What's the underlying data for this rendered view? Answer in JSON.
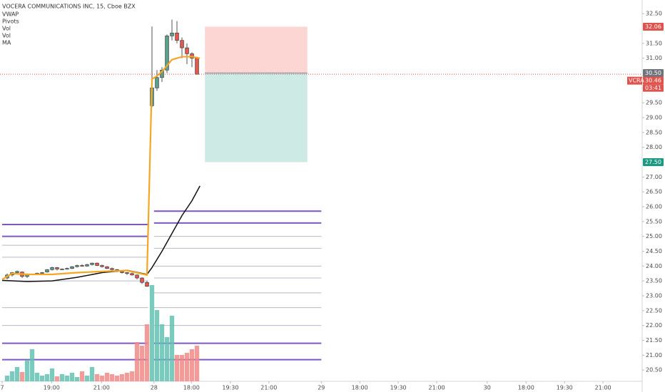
{
  "chart_data": {
    "type": "candlestick",
    "title": "VOCERA COMMUNICATIONS INC, 15, Cboe BZX",
    "indicators": [
      "VWAP",
      "Pivots",
      "Vol",
      "Vol",
      "MA"
    ],
    "x": [
      1,
      2,
      3,
      4,
      5,
      6,
      7,
      8,
      9,
      10,
      11,
      12,
      13,
      14,
      15,
      16,
      17,
      18,
      19,
      20,
      21,
      22,
      23,
      24,
      25,
      26,
      27,
      28,
      29,
      30,
      31,
      32,
      33,
      34,
      35,
      36,
      37,
      38,
      39
    ],
    "open": [
      23.6,
      23.7,
      23.78,
      23.8,
      23.65,
      23.72,
      23.73,
      23.76,
      23.8,
      23.88,
      23.95,
      23.9,
      23.9,
      23.92,
      23.98,
      24.02,
      24.0,
      24.05,
      24.1,
      24.02,
      23.98,
      23.92,
      23.88,
      23.82,
      23.78,
      23.75,
      23.7,
      23.6,
      23.45,
      29.4,
      30.0,
      30.35,
      30.6,
      31.75,
      31.85,
      31.6,
      31.35,
      31.15,
      31.0
    ],
    "high": [
      23.75,
      23.8,
      23.85,
      23.82,
      23.75,
      23.75,
      23.78,
      23.8,
      23.9,
      23.98,
      23.97,
      23.92,
      23.95,
      24.0,
      24.05,
      24.06,
      24.08,
      24.12,
      24.12,
      24.05,
      24.0,
      23.95,
      23.9,
      23.85,
      23.8,
      23.78,
      23.72,
      23.62,
      23.5,
      32.07,
      30.6,
      30.7,
      31.8,
      32.3,
      32.25,
      31.7,
      31.5,
      31.2,
      31.05
    ],
    "low": [
      23.55,
      23.65,
      23.75,
      23.6,
      23.6,
      23.7,
      23.7,
      23.74,
      23.78,
      23.85,
      23.85,
      23.88,
      23.88,
      23.9,
      23.95,
      23.98,
      23.98,
      24.02,
      24.0,
      23.95,
      23.9,
      23.85,
      23.8,
      23.75,
      23.7,
      23.68,
      23.55,
      23.4,
      23.3,
      29.35,
      29.9,
      30.2,
      30.5,
      31.6,
      31.5,
      31.0,
      30.8,
      30.7,
      30.45
    ],
    "close": [
      23.7,
      23.78,
      23.82,
      23.65,
      23.72,
      23.73,
      23.76,
      23.78,
      23.88,
      23.95,
      23.9,
      23.9,
      23.92,
      23.98,
      24.02,
      24.0,
      24.05,
      24.1,
      24.02,
      23.98,
      23.92,
      23.88,
      23.82,
      23.78,
      23.75,
      23.7,
      23.6,
      23.45,
      23.32,
      30.0,
      30.35,
      30.6,
      31.75,
      31.85,
      31.6,
      31.35,
      31.15,
      31.0,
      30.46
    ],
    "up_color": "#5a9e8c",
    "down_color": "#e0584f",
    "volume": {
      "values": [
        8,
        14,
        20,
        13,
        30,
        45,
        12,
        8,
        10,
        18,
        7,
        10,
        8,
        12,
        6,
        14,
        8,
        20,
        10,
        8,
        12,
        10,
        8,
        10,
        12,
        14,
        55,
        50,
        80,
        135,
        100,
        80,
        62,
        92,
        37,
        37,
        40,
        45,
        50
      ],
      "up_color": "#64c1b3",
      "down_color": "#f08a86"
    },
    "vwap": {
      "x": [
        0,
        2,
        5,
        10,
        15,
        20,
        25,
        29,
        30,
        31,
        32,
        34,
        36,
        38,
        39.6
      ],
      "values": [
        23.55,
        23.75,
        23.72,
        23.72,
        23.78,
        23.82,
        23.85,
        23.7,
        30.3,
        30.4,
        30.55,
        30.95,
        31.05,
        31.05,
        31.0
      ],
      "color": "#f5a623"
    },
    "ma": {
      "x": [
        0,
        5,
        10,
        15,
        20,
        25,
        29,
        30,
        32,
        34,
        36,
        38,
        39.6
      ],
      "values": [
        23.52,
        23.48,
        23.5,
        23.62,
        23.78,
        23.86,
        23.72,
        23.95,
        24.5,
        25.1,
        25.7,
        26.2,
        26.7
      ],
      "color": "#111111"
    },
    "pivots": [
      {
        "x": [
          0,
          29.2
        ],
        "major": [
          25.4,
          25.0,
          21.4,
          20.85
        ],
        "minor": [
          24.7,
          24.3,
          23.5,
          22.6,
          22.0
        ]
      },
      {
        "x": [
          30.4,
          63.9
        ],
        "major": [
          25.85,
          25.45,
          21.4,
          20.85
        ],
        "minor": [
          25.0,
          24.6,
          24.0,
          23.6,
          23.1,
          22.6,
          22.0
        ]
      }
    ],
    "pivot_major_color": "#7e57c2",
    "pivot_minor_color": "#b8b8c8",
    "position": {
      "x": [
        40.6,
        61.1
      ],
      "stop": 32.06,
      "entry": {
        "value": 30.5,
        "label": "30.50"
      },
      "target": {
        "value": 27.5,
        "label": "27.50"
      },
      "loss_color": "#fcd6d3",
      "profit_color": "#cdeae5",
      "stop_color": "#e0524c",
      "entry_color": "#6f747b",
      "target_color": "#1a9a82"
    },
    "last_price": {
      "symbol": "VCRA",
      "value": 30.46,
      "countdown": "03:41",
      "color": "#e0524c"
    },
    "xlim": [
      -0.43,
      128.14
    ],
    "ylim": [
      20.12,
      32.96
    ],
    "xticks": [
      {
        "value": 0,
        "label": "7"
      },
      {
        "value": 9.9,
        "label": "19:00"
      },
      {
        "value": 19.9,
        "label": "21:00"
      },
      {
        "value": 30.4,
        "label": "28"
      },
      {
        "value": 37.9,
        "label": "18:00"
      },
      {
        "value": 45.7,
        "label": "19:30"
      },
      {
        "value": 53.4,
        "label": "21:00"
      },
      {
        "value": 63.9,
        "label": "29"
      },
      {
        "value": 71.6,
        "label": "18:00"
      },
      {
        "value": 79.3,
        "label": "19:30"
      },
      {
        "value": 87,
        "label": "21:00"
      },
      {
        "value": 97.1,
        "label": "30"
      },
      {
        "value": 104.9,
        "label": "18:00"
      },
      {
        "value": 112.6,
        "label": "19:30"
      },
      {
        "value": 120.3,
        "label": "21:00"
      }
    ],
    "yticks": [
      {
        "value": 32.5,
        "label": "32.50"
      },
      {
        "value": 31.5,
        "label": "31.50"
      },
      {
        "value": 31,
        "label": "31.00"
      },
      {
        "value": 30,
        "label": "30.00"
      },
      {
        "value": 29.5,
        "label": "29.50"
      },
      {
        "value": 29,
        "label": "29.00"
      },
      {
        "value": 28.5,
        "label": "28.50"
      },
      {
        "value": 28,
        "label": "28.00"
      },
      {
        "value": 27,
        "label": "27.00"
      },
      {
        "value": 26.5,
        "label": "26.50"
      },
      {
        "value": 26,
        "label": "26.00"
      },
      {
        "value": 25.5,
        "label": "25.50"
      },
      {
        "value": 25,
        "label": "25.00"
      },
      {
        "value": 24.5,
        "label": "24.50"
      },
      {
        "value": 24,
        "label": "24.00"
      },
      {
        "value": 23.5,
        "label": "23.50"
      },
      {
        "value": 23,
        "label": "23.00"
      },
      {
        "value": 22.5,
        "label": "22.50"
      },
      {
        "value": 22,
        "label": "22.00"
      },
      {
        "value": 21.5,
        "label": "21.50"
      },
      {
        "value": 21,
        "label": "21.00"
      },
      {
        "value": 20.5,
        "label": "20.50"
      }
    ]
  }
}
